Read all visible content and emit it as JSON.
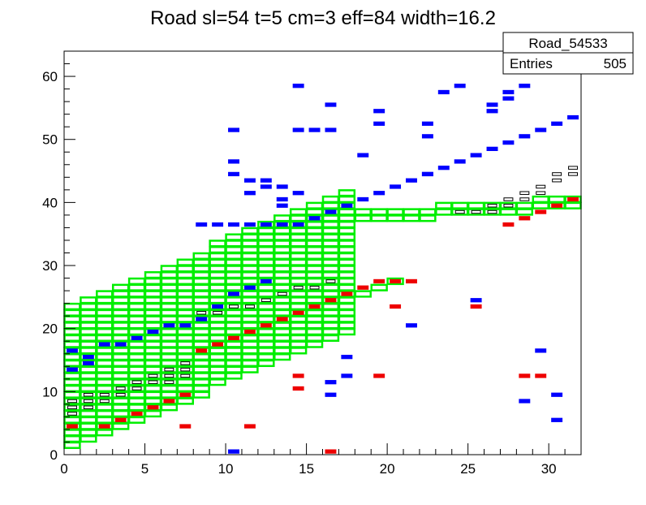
{
  "chart_data": {
    "type": "heatmap",
    "title": "Road sl=54 t=5 cm=3 eff=84 width=16.2",
    "xlabel": "",
    "ylabel": "",
    "xlim": [
      0,
      32
    ],
    "ylim": [
      0,
      64
    ],
    "x_ticks": [
      "0",
      "5",
      "10",
      "15",
      "20",
      "25",
      "30"
    ],
    "y_ticks": [
      "0",
      "10",
      "20",
      "30",
      "40",
      "50",
      "60"
    ],
    "grid": false,
    "stats_box": {
      "name": "Road_54533",
      "entries_label": "Entries",
      "entries_value": "505"
    },
    "colors": {
      "road_outline": "#00ee00",
      "hit_blue": "#0000ff",
      "hit_red": "#ee0000",
      "hit_box": "#000000"
    },
    "road_segments": [
      {
        "name": "lower-left road",
        "x_start": 0,
        "x_end": 18,
        "y_low_start": 1,
        "y_low_end": 19,
        "width": 23
      },
      {
        "name": "lower-right road",
        "x_start": 8,
        "x_end": 21,
        "y_low_start": 15,
        "y_low_end": 27,
        "width": 1
      },
      {
        "name": "upper road",
        "x_start": 14,
        "x_end": 32,
        "y_low_start": 36,
        "y_low_end": 39,
        "width": 2
      }
    ],
    "hits_red": [
      [
        0.5,
        4.5
      ],
      [
        2.5,
        4.5
      ],
      [
        3.5,
        5.5
      ],
      [
        4.5,
        6.5
      ],
      [
        5.5,
        7.5
      ],
      [
        6.5,
        8.5
      ],
      [
        7.5,
        9.5
      ],
      [
        8.5,
        16.5
      ],
      [
        9.5,
        17.5
      ],
      [
        10.5,
        18.5
      ],
      [
        11.5,
        19.5
      ],
      [
        12.5,
        20.5
      ],
      [
        13.5,
        21.5
      ],
      [
        14.5,
        22.5
      ],
      [
        15.5,
        23.5
      ],
      [
        16.5,
        24.5
      ],
      [
        17.5,
        25.5
      ],
      [
        18.5,
        26.5
      ],
      [
        19.5,
        27.5
      ],
      [
        20.5,
        27.5
      ],
      [
        21.5,
        27.5
      ],
      [
        27.5,
        36.5
      ],
      [
        28.5,
        37.5
      ],
      [
        29.5,
        38.5
      ],
      [
        30.5,
        39.5
      ],
      [
        31.5,
        40.5
      ],
      [
        7.5,
        4.5
      ],
      [
        11.5,
        4.5
      ],
      [
        16.5,
        0.5
      ],
      [
        14.5,
        12.5
      ],
      [
        14.5,
        10.5
      ],
      [
        19.5,
        12.5
      ],
      [
        20.5,
        23.5
      ],
      [
        25.5,
        23.5
      ],
      [
        28.5,
        12.5
      ],
      [
        29.5,
        12.5
      ]
    ],
    "hits_blue": [
      [
        0.5,
        13.5
      ],
      [
        0.5,
        16.5
      ],
      [
        1.5,
        14.5
      ],
      [
        1.5,
        15.5
      ],
      [
        2.5,
        17.5
      ],
      [
        3.5,
        17.5
      ],
      [
        4.5,
        18.5
      ],
      [
        5.5,
        19.5
      ],
      [
        6.5,
        20.5
      ],
      [
        7.5,
        20.5
      ],
      [
        8.5,
        21.5
      ],
      [
        9.5,
        23.5
      ],
      [
        10.5,
        25.5
      ],
      [
        11.5,
        26.5
      ],
      [
        12.5,
        27.5
      ],
      [
        14.5,
        36.5
      ],
      [
        15.5,
        37.5
      ],
      [
        16.5,
        38.5
      ],
      [
        17.5,
        39.5
      ],
      [
        18.5,
        40.5
      ],
      [
        19.5,
        41.5
      ],
      [
        20.5,
        42.5
      ],
      [
        21.5,
        43.5
      ],
      [
        22.5,
        44.5
      ],
      [
        23.5,
        45.5
      ],
      [
        24.5,
        46.5
      ],
      [
        25.5,
        47.5
      ],
      [
        26.5,
        48.5
      ],
      [
        27.5,
        49.5
      ],
      [
        28.5,
        50.5
      ],
      [
        29.5,
        51.5
      ],
      [
        30.5,
        52.5
      ],
      [
        31.5,
        53.5
      ],
      [
        10.5,
        36.5
      ],
      [
        11.5,
        36.5
      ],
      [
        12.5,
        36.5
      ],
      [
        13.5,
        36.5
      ],
      [
        8.5,
        36.5
      ],
      [
        9.5,
        36.5
      ],
      [
        14.5,
        58.5
      ],
      [
        16.5,
        55.5
      ],
      [
        16.5,
        51.5
      ],
      [
        15.5,
        51.5
      ],
      [
        14.5,
        51.5
      ],
      [
        10.5,
        46.5
      ],
      [
        10.5,
        51.5
      ],
      [
        18.5,
        47.5
      ],
      [
        19.5,
        52.5
      ],
      [
        19.5,
        54.5
      ],
      [
        22.5,
        52.5
      ],
      [
        22.5,
        50.5
      ],
      [
        22.5,
        44.5
      ],
      [
        11.5,
        43.5
      ],
      [
        12.5,
        43.5
      ],
      [
        12.5,
        42.5
      ],
      [
        13.5,
        42.5
      ],
      [
        14.5,
        41.5
      ],
      [
        13.5,
        40.5
      ],
      [
        13.5,
        39.5
      ],
      [
        11.5,
        41.5
      ],
      [
        10.5,
        44.5
      ],
      [
        17.5,
        12.5
      ],
      [
        17.5,
        15.5
      ],
      [
        16.5,
        11.5
      ],
      [
        16.5,
        9.5
      ],
      [
        21.5,
        20.5
      ],
      [
        10.5,
        0.5
      ],
      [
        25.5,
        24.5
      ],
      [
        28.5,
        8.5
      ],
      [
        30.5,
        5.5
      ],
      [
        30.5,
        9.5
      ],
      [
        29.5,
        16.5
      ],
      [
        23.5,
        57.5
      ],
      [
        24.5,
        58.5
      ],
      [
        26.5,
        54.5
      ],
      [
        26.5,
        55.5
      ],
      [
        27.5,
        56.5
      ],
      [
        27.5,
        57.5
      ],
      [
        28.5,
        58.5
      ]
    ],
    "hits_black": [
      [
        0.5,
        6.5
      ],
      [
        0.5,
        7.5
      ],
      [
        0.5,
        8.5
      ],
      [
        1.5,
        8.5
      ],
      [
        1.5,
        9.5
      ],
      [
        2.5,
        9.5
      ],
      [
        3.5,
        10.5
      ],
      [
        4.5,
        10.5
      ],
      [
        4.5,
        11.5
      ],
      [
        5.5,
        12.5
      ],
      [
        6.5,
        12.5
      ],
      [
        6.5,
        13.5
      ],
      [
        7.5,
        13.5
      ],
      [
        7.5,
        14.5
      ],
      [
        8.5,
        22.5
      ],
      [
        9.5,
        22.5
      ],
      [
        10.5,
        23.5
      ],
      [
        11.5,
        23.5
      ],
      [
        12.5,
        24.5
      ],
      [
        13.5,
        25.5
      ],
      [
        14.5,
        26.5
      ],
      [
        15.5,
        26.5
      ],
      [
        16.5,
        27.5
      ],
      [
        26.5,
        39.5
      ],
      [
        27.5,
        40.5
      ],
      [
        28.5,
        41.5
      ],
      [
        29.5,
        42.5
      ],
      [
        30.5,
        43.5
      ],
      [
        31.5,
        44.5
      ],
      [
        30.5,
        44.5
      ],
      [
        31.5,
        45.5
      ],
      [
        29.5,
        41.5
      ],
      [
        28.5,
        40.5
      ],
      [
        27.5,
        39.5
      ],
      [
        26.5,
        38.5
      ],
      [
        25.5,
        38.5
      ],
      [
        24.5,
        38.5
      ],
      [
        5.5,
        11.5
      ],
      [
        3.5,
        9.5
      ],
      [
        2.5,
        8.5
      ],
      [
        1.5,
        7.5
      ],
      [
        6.5,
        11.5
      ],
      [
        7.5,
        12.5
      ]
    ]
  }
}
